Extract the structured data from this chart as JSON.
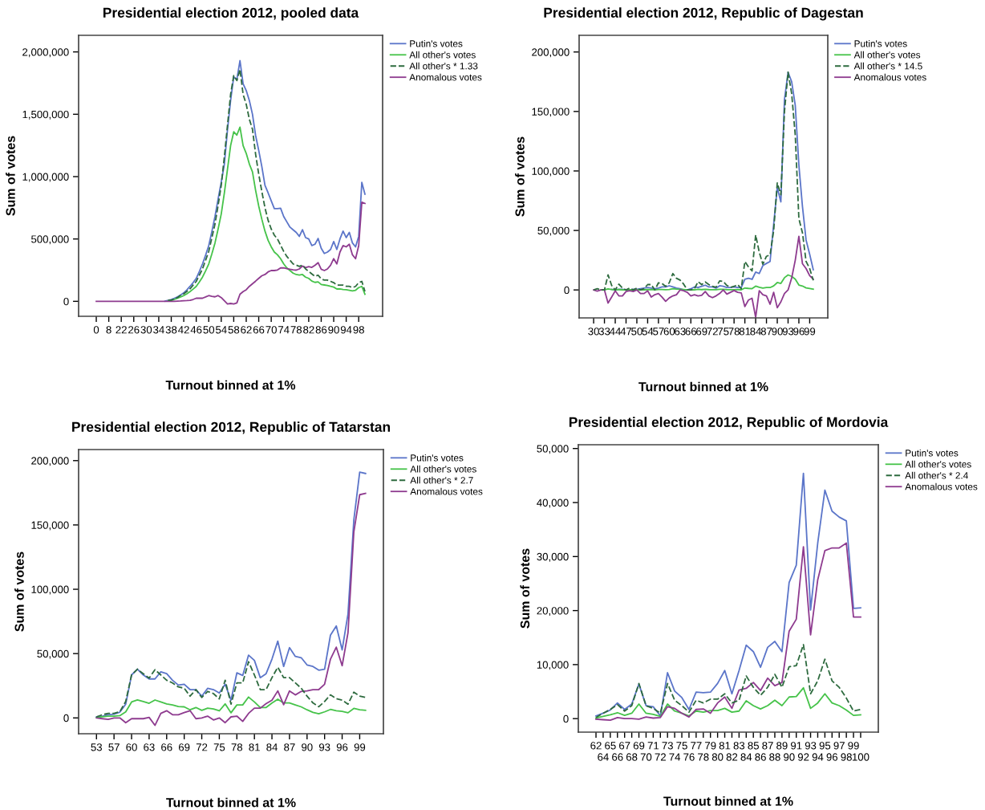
{
  "chart_data": [
    {
      "type": "line",
      "title": "Presidential election 2012, pooled data",
      "xlabel": "Turnout binned at 1%",
      "ylabel": "Sum of votes",
      "legend": "right",
      "grid": false,
      "categories": [
        "0",
        null,
        null,
        null,
        "8",
        null,
        null,
        null,
        "22",
        null,
        null,
        null,
        "26",
        null,
        null,
        null,
        "30",
        null,
        null,
        null,
        "34",
        null,
        null,
        null,
        "38",
        null,
        null,
        null,
        "42",
        null,
        null,
        null,
        "46",
        null,
        null,
        null,
        "50",
        null,
        null,
        null,
        "54",
        null,
        null,
        null,
        "58",
        null,
        null,
        null,
        "62",
        null,
        null,
        null,
        "66",
        null,
        null,
        null,
        "70",
        null,
        null,
        null,
        "74",
        null,
        null,
        null,
        "78",
        null,
        null,
        null,
        "82",
        null,
        null,
        null,
        "86",
        null,
        null,
        null,
        "90",
        null,
        null,
        null,
        "94",
        null,
        null,
        null,
        "98",
        null,
        null
      ],
      "ylim": [
        -120000,
        2133000
      ],
      "yticks": [
        0,
        {
          "value": 500000,
          "label": "500,000"
        },
        {
          "value": 1000000,
          "label": "1,000,000"
        },
        {
          "value": 1500000,
          "label": "1,500,000"
        },
        {
          "value": 2000000,
          "label": "2,000,000"
        }
      ],
      "series": [
        {
          "name": "Putin's votes",
          "color": "#5b75c9",
          "values": [
            null,
            null,
            null,
            null,
            null,
            null,
            null,
            null,
            null,
            null,
            null,
            null,
            null,
            null,
            null,
            null,
            null,
            null,
            null,
            null,
            null,
            null,
            2000,
            8000,
            15000,
            25000,
            36000,
            50000,
            68000,
            92000,
            120000,
            150000,
            184000,
            240000,
            300000,
            370000,
            447000,
            560000,
            680000,
            820000,
            955000,
            1100000,
            1375000,
            1610000,
            1800000,
            1780000,
            1930000,
            1745000,
            1690000,
            1610000,
            1500000,
            1330000,
            1210000,
            1080000,
            930000,
            870000,
            806000,
            743000,
            743000,
            747000,
            680000,
            637000,
            595000,
            574000,
            553000,
            521000,
            574000,
            511000,
            500000,
            447000,
            458000,
            504000,
            426000,
            384000,
            395000,
            416000,
            479000,
            416000,
            500000,
            563000,
            511000,
            553000,
            468000,
            437000,
            521000,
            954000,
            859000
          ]
        },
        {
          "name": "All other's votes",
          "color": "#46c34a",
          "values": [
            null,
            null,
            null,
            null,
            null,
            null,
            null,
            null,
            null,
            null,
            null,
            null,
            null,
            null,
            null,
            null,
            null,
            null,
            null,
            null,
            null,
            null,
            null,
            4000,
            8000,
            15000,
            25000,
            35000,
            46000,
            60000,
            78000,
            98000,
            120000,
            155000,
            194000,
            245000,
            300000,
            380000,
            468000,
            580000,
            700000,
            869000,
            1059000,
            1249000,
            1359000,
            1333000,
            1397000,
            1249000,
            1186000,
            1101000,
            1038000,
            890000,
            764000,
            658000,
            563000,
            489000,
            437000,
            395000,
            373000,
            342000,
            300000,
            268000,
            247000,
            226000,
            215000,
            211000,
            215000,
            194000,
            184000,
            162000,
            152000,
            156000,
            135000,
            131000,
            127000,
            120000,
            114000,
            99000,
            99000,
            95000,
            93000,
            89000,
            84000,
            89000,
            110000,
            120000,
            57000
          ]
        },
        {
          "name": "All other's * 1.33",
          "color": "#2e6b3f",
          "line_style": "dashed",
          "values": [
            null,
            null,
            null,
            null,
            null,
            null,
            null,
            null,
            null,
            null,
            null,
            null,
            null,
            null,
            null,
            null,
            null,
            null,
            null,
            null,
            null,
            null,
            null,
            10000,
            10000,
            20000,
            30000,
            50000,
            60000,
            80000,
            100000,
            130000,
            160000,
            210000,
            260000,
            330000,
            400000,
            510000,
            620000,
            770000,
            930000,
            1160000,
            1410000,
            1660000,
            1810000,
            1770000,
            1860000,
            1660000,
            1580000,
            1460000,
            1380000,
            1180000,
            1020000,
            880000,
            750000,
            650000,
            580000,
            530000,
            500000,
            450000,
            400000,
            360000,
            330000,
            300000,
            290000,
            280000,
            290000,
            260000,
            240000,
            220000,
            200000,
            210000,
            180000,
            170000,
            170000,
            160000,
            150000,
            130000,
            130000,
            130000,
            120000,
            120000,
            110000,
            120000,
            150000,
            160000,
            80000
          ]
        },
        {
          "name": "Anomalous votes",
          "color": "#8e3b8f",
          "values": [
            0,
            0,
            0,
            0,
            0,
            0,
            0,
            0,
            0,
            0,
            0,
            0,
            0,
            0,
            0,
            0,
            0,
            0,
            0,
            0,
            0,
            0,
            0,
            0,
            0,
            0,
            2000,
            3000,
            5000,
            6000,
            8000,
            15000,
            25000,
            25000,
            25000,
            35000,
            46000,
            40000,
            36000,
            46000,
            30000,
            4000,
            -21000,
            -17000,
            -21000,
            -13000,
            57000,
            78000,
            93000,
            120000,
            141000,
            162000,
            184000,
            205000,
            215000,
            236000,
            247000,
            247000,
            251000,
            268000,
            268000,
            262000,
            257000,
            253000,
            250000,
            260000,
            283000,
            270000,
            278000,
            272000,
            289000,
            310000,
            257000,
            247000,
            260000,
            290000,
            342000,
            300000,
            395000,
            447000,
            437000,
            458000,
            373000,
            342000,
            447000,
            795000,
            785000
          ]
        }
      ]
    },
    {
      "type": "line",
      "title": "Presidential election 2012, Republic of Dagestan",
      "xlabel": "Turnout binned at 1%",
      "ylabel": "Sum of votes",
      "legend": "right",
      "grid": false,
      "categories": [
        "30",
        null,
        null,
        "33",
        null,
        null,
        "44",
        null,
        null,
        "47",
        null,
        null,
        "50",
        null,
        null,
        "54",
        null,
        null,
        "57",
        null,
        null,
        "60",
        null,
        null,
        "63",
        null,
        null,
        "66",
        null,
        null,
        "69",
        null,
        null,
        "72",
        null,
        null,
        "75",
        null,
        null,
        "78",
        null,
        null,
        "81",
        null,
        null,
        "84",
        null,
        null,
        "87",
        null,
        null,
        "90",
        null,
        null,
        "93",
        null,
        null,
        "96",
        null,
        null,
        "99",
        null
      ],
      "ylim": [
        -23500,
        214000
      ],
      "yticks": [
        0,
        {
          "value": 50000,
          "label": "50,000"
        },
        {
          "value": 100000,
          "label": "100,000"
        },
        {
          "value": 150000,
          "label": "150,000"
        },
        {
          "value": 200000,
          "label": "200,000"
        }
      ],
      "series": [
        {
          "name": "Putin's votes",
          "color": "#5b75c9",
          "values": [
            null,
            null,
            null,
            null,
            null,
            500,
            0,
            500,
            500,
            0,
            0,
            500,
            500,
            1000,
            1500,
            2000,
            1500,
            1000,
            1500,
            2500,
            2500,
            3500,
            2500,
            1500,
            1000,
            0,
            0,
            1000,
            2500,
            2000,
            3000,
            4000,
            2500,
            2500,
            1500,
            3500,
            3000,
            2000,
            2000,
            2500,
            2000,
            2000,
            8900,
            9800,
            8900,
            15000,
            13800,
            20500,
            22300,
            23900,
            55000,
            86000,
            74000,
            160000,
            183000,
            175000,
            155000,
            105000,
            70000,
            42000,
            30000,
            17000
          ]
        },
        {
          "name": "All other's votes",
          "color": "#46c34a",
          "values": [
            null,
            null,
            0,
            0,
            900,
            300,
            0,
            300,
            100,
            0,
            100,
            0,
            100,
            0,
            100,
            300,
            300,
            0,
            400,
            400,
            200,
            400,
            1000,
            700,
            600,
            300,
            0,
            0,
            100,
            500,
            300,
            500,
            300,
            200,
            200,
            500,
            500,
            300,
            200,
            200,
            300,
            100,
            1600,
            1300,
            1100,
            3200,
            2200,
            1500,
            2000,
            2000,
            3400,
            6200,
            5500,
            10300,
            12600,
            11400,
            9000,
            4100,
            3300,
            1700,
            1200,
            600
          ]
        },
        {
          "name": "All other's * 14.5",
          "color": "#2e6b3f",
          "line_style": "dashed",
          "values": [
            0,
            1000,
            0,
            0,
            12700,
            3800,
            0,
            4900,
            1600,
            0,
            1600,
            0,
            1600,
            0,
            1000,
            4500,
            4500,
            0,
            6000,
            5400,
            3000,
            6000,
            13800,
            9800,
            8300,
            4900,
            0,
            0,
            1000,
            7000,
            4500,
            6700,
            4500,
            3000,
            2200,
            7600,
            7100,
            3800,
            2200,
            3000,
            4500,
            1000,
            23900,
            19400,
            16000,
            46200,
            31700,
            21600,
            28300,
            29400,
            50000,
            90000,
            80000,
            150000,
            183000,
            165000,
            130000,
            60000,
            48000,
            24000,
            18000,
            8000
          ]
        },
        {
          "name": "Anomalous votes",
          "color": "#8e3b8f",
          "values": [
            0,
            -1000,
            0,
            0,
            -11000,
            -6000,
            -700,
            -5000,
            -5000,
            -1300,
            -700,
            -1300,
            0,
            -3000,
            -3000,
            -700,
            -6000,
            -4000,
            -3000,
            -6000,
            -9600,
            -6700,
            -5000,
            -4000,
            0,
            -700,
            -2000,
            -5000,
            -4000,
            -5000,
            -4500,
            -1300,
            -5000,
            -6500,
            -5000,
            -3000,
            0,
            -3500,
            -2000,
            -500,
            -2000,
            -2500,
            -14000,
            -8500,
            -7000,
            -23000,
            -700,
            -4000,
            -5000,
            -12000,
            -2000,
            -15000,
            -10000,
            -3000,
            0,
            10000,
            25000,
            45000,
            22000,
            18000,
            12000,
            9000
          ]
        }
      ]
    },
    {
      "type": "line",
      "title": "Presidential election 2012, Republic of Tatarstan",
      "xlabel": "Turnout binned at 1%",
      "ylabel": "Sum of votes",
      "legend": "right",
      "grid": false,
      "categories": [
        "53",
        null,
        null,
        "57",
        null,
        null,
        "60",
        null,
        null,
        "63",
        null,
        null,
        "66",
        null,
        null,
        "69",
        null,
        null,
        "72",
        null,
        null,
        "75",
        null,
        null,
        "78",
        null,
        null,
        "81",
        null,
        null,
        "84",
        null,
        null,
        "87",
        null,
        null,
        "90",
        null,
        null,
        "93",
        null,
        null,
        "96",
        null,
        null,
        "99",
        null
      ],
      "ylim": [
        -12300,
        208600
      ],
      "yticks": [
        0,
        {
          "value": 50000,
          "label": "50,000"
        },
        {
          "value": 100000,
          "label": "100,000"
        },
        {
          "value": 150000,
          "label": "150,000"
        },
        {
          "value": 200000,
          "label": "200,000"
        }
      ],
      "series": [
        {
          "name": "Putin's votes",
          "color": "#5b75c9",
          "values": [
            800,
            1400,
            2500,
            2900,
            4500,
            10700,
            33400,
            37900,
            33400,
            30300,
            30300,
            35800,
            34400,
            29300,
            25500,
            26200,
            22000,
            22000,
            16900,
            23000,
            22000,
            19400,
            26200,
            13800,
            35000,
            33000,
            48800,
            44700,
            31300,
            34400,
            45700,
            59700,
            40000,
            54600,
            47800,
            46800,
            41200,
            40000,
            37100,
            37900,
            64300,
            71500,
            52900,
            80800,
            153900,
            191000,
            190000
          ]
        },
        {
          "name": "All other's votes",
          "color": "#46c34a",
          "values": [
            300,
            900,
            1300,
            1300,
            1800,
            4700,
            12400,
            14000,
            12700,
            11400,
            13900,
            12400,
            10900,
            10100,
            8900,
            8600,
            6300,
            8100,
            5900,
            7600,
            7000,
            5500,
            10900,
            4000,
            10100,
            10100,
            16200,
            12400,
            8100,
            8100,
            11600,
            14600,
            11600,
            11600,
            10100,
            8600,
            6300,
            4300,
            3200,
            4700,
            6600,
            5600,
            5100,
            4000,
            7400,
            6300,
            5900
          ]
        },
        {
          "name": "All other's * 2.7",
          "color": "#2e6b3f",
          "line_style": "dashed",
          "values": [
            800,
            2500,
            3500,
            3500,
            4900,
            12800,
            33400,
            37900,
            34400,
            30900,
            37500,
            33400,
            29300,
            27200,
            24100,
            23100,
            16900,
            22000,
            15900,
            20600,
            18900,
            14800,
            29300,
            10700,
            27200,
            27200,
            43700,
            33400,
            22000,
            22000,
            31300,
            39400,
            31300,
            31300,
            27200,
            23100,
            16900,
            11700,
            8700,
            12800,
            17900,
            15000,
            13800,
            10700,
            20000,
            17000,
            15900
          ]
        },
        {
          "name": "Anomalous votes",
          "color": "#8e3b8f",
          "values": [
            0,
            -600,
            -1200,
            0,
            0,
            -3700,
            -600,
            -600,
            -600,
            400,
            -5800,
            3500,
            5600,
            2500,
            2500,
            4100,
            5600,
            -600,
            0,
            1400,
            -1600,
            0,
            -3700,
            800,
            1400,
            -2700,
            3500,
            7600,
            7600,
            11100,
            13800,
            21000,
            10300,
            21000,
            17900,
            20600,
            21000,
            22000,
            22000,
            26200,
            45700,
            55000,
            40600,
            66300,
            144600,
            173500,
            174500
          ]
        }
      ]
    },
    {
      "type": "line",
      "title": "Presidential election 2012, Republic of Mordovia",
      "xlabel": "Turnout binned at 1%",
      "ylabel": "Sum of votes",
      "legend": "right",
      "grid": false,
      "categories": [
        "62",
        "64",
        "65",
        "66",
        "67",
        "68",
        "69",
        "70",
        "71",
        "72",
        "73",
        "74",
        "75",
        "76",
        "77",
        "78",
        "79",
        "80",
        "81",
        "82",
        "83",
        "84",
        "85",
        "86",
        "87",
        "88",
        "89",
        "90",
        "91",
        "92",
        "93",
        "94",
        "95",
        "96",
        "97",
        "98",
        "99",
        "100"
      ],
      "ylim": [
        -2500,
        50700
      ],
      "yticks": [
        0,
        {
          "value": 10000,
          "label": "10,000"
        },
        {
          "value": 20000,
          "label": "20,000"
        },
        {
          "value": 30000,
          "label": "30,000"
        },
        {
          "value": 40000,
          "label": "40,000"
        },
        {
          "value": 50000,
          "label": "50,000"
        }
      ],
      "series": [
        {
          "name": "Putin's votes",
          "color": "#5b75c9",
          "values": [
            500,
            1000,
            1600,
            2900,
            1700,
            2700,
            6400,
            2400,
            2200,
            500,
            8500,
            5100,
            3900,
            1700,
            4900,
            4800,
            4900,
            6500,
            8900,
            4600,
            8900,
            13600,
            12400,
            9500,
            13200,
            14300,
            12400,
            25200,
            28400,
            45400,
            20100,
            32500,
            42300,
            38400,
            37300,
            36600,
            20400,
            20500
          ]
        },
        {
          "name": "All other's votes",
          "color": "#46c34a",
          "values": [
            100,
            400,
            700,
            1100,
            600,
            1000,
            2700,
            1000,
            800,
            400,
            2700,
            1400,
            1000,
            500,
            1400,
            1200,
            1500,
            1500,
            1900,
            1200,
            1400,
            3300,
            2400,
            1800,
            2400,
            3400,
            2400,
            4000,
            4100,
            5700,
            1900,
            2900,
            4600,
            2900,
            2400,
            1600,
            600,
            700
          ]
        },
        {
          "name": "All other's * 2.4",
          "color": "#2e6b3f",
          "line_style": "dashed",
          "values": [
            200,
            1000,
            1700,
            2600,
            1400,
            2400,
            6500,
            2400,
            1900,
            1000,
            6500,
            3400,
            2400,
            1200,
            3400,
            2900,
            3600,
            3600,
            4600,
            2900,
            3400,
            7900,
            5800,
            4300,
            5800,
            8200,
            5800,
            9600,
            9800,
            13700,
            4600,
            7000,
            11000,
            7000,
            5800,
            3800,
            1400,
            1700
          ]
        },
        {
          "name": "Anomalous votes",
          "color": "#8e3b8f",
          "values": [
            -100,
            -200,
            -300,
            200,
            0,
            0,
            -100,
            300,
            100,
            200,
            2200,
            1900,
            1000,
            300,
            1700,
            1800,
            1000,
            2900,
            4000,
            1900,
            5300,
            5600,
            6700,
            5200,
            7500,
            6100,
            6700,
            16200,
            18400,
            31800,
            15500,
            25700,
            31100,
            31600,
            31600,
            32500,
            18800,
            18800
          ]
        }
      ]
    }
  ]
}
